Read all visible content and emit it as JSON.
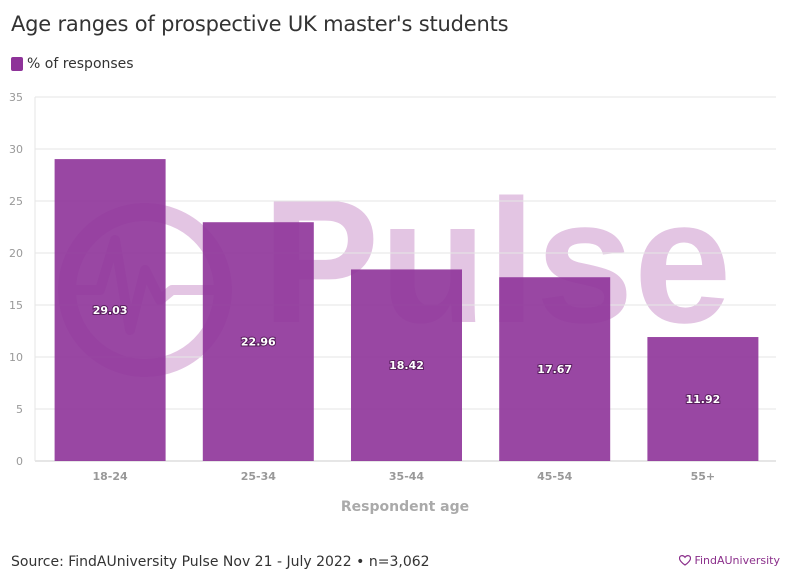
{
  "title": "Age ranges of prospective UK master's students",
  "footer": {
    "source": "Source: FindAUniversity Pulse Nov 21 - July 2022 • n=3,062"
  },
  "brand": {
    "name": "FindAUniversity",
    "icon": "heart-icon"
  },
  "watermark": {
    "text": "Pulse",
    "color": "#e3c5e3"
  },
  "colors": {
    "bar": "#8e3399",
    "watermark": "#e3c5e3",
    "brand": "#8b2f8b"
  },
  "chart_data": {
    "type": "bar",
    "categories": [
      "18-24",
      "25-34",
      "35-44",
      "45-54",
      "55+"
    ],
    "series": [
      {
        "name": "% of responses",
        "values": [
          29.03,
          22.96,
          18.42,
          17.67,
          11.92
        ]
      }
    ],
    "data_labels": [
      "29.03",
      "22.96",
      "18.42",
      "17.67",
      "11.92"
    ],
    "title": "Age ranges of prospective UK master's students",
    "xlabel": "Respondent age",
    "ylabel": "",
    "ylim": [
      0,
      35
    ],
    "yticks": [
      0,
      5,
      10,
      15,
      20,
      25,
      30,
      35
    ],
    "grid": true,
    "legend": "top-left"
  }
}
